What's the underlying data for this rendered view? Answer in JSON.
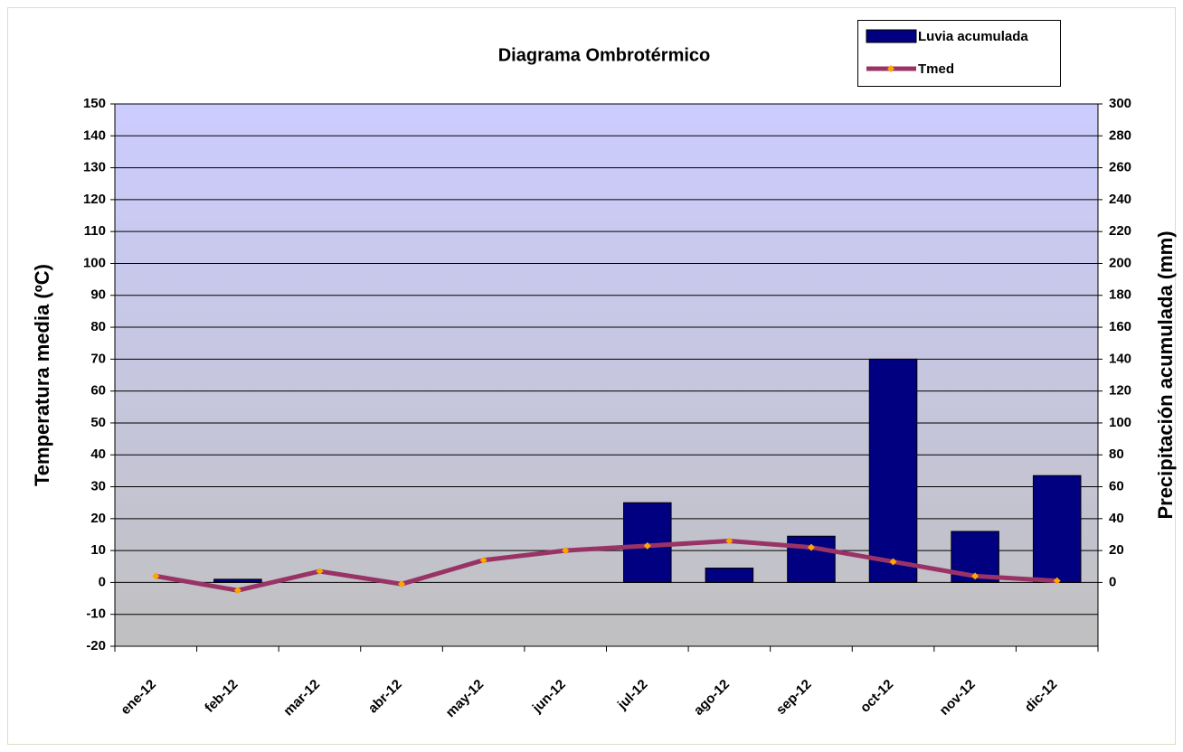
{
  "chart_data": {
    "type": "bar",
    "title": "Diagrama Ombrotérmico",
    "ylabel": "Temperatura media (ºC)",
    "y2label": "Precipitación acumulada (mm)",
    "categories": [
      "ene-12",
      "feb-12",
      "mar-12",
      "abr-12",
      "may-12",
      "jun-12",
      "jul-12",
      "ago-12",
      "sep-12",
      "oct-12",
      "nov-12",
      "dic-12"
    ],
    "series": [
      {
        "name": "Luvia acumulada",
        "type": "bar",
        "axis": "y2",
        "color": "#000080",
        "values": [
          0,
          2,
          0,
          0,
          0,
          0,
          50,
          9,
          29,
          140,
          32,
          67
        ]
      },
      {
        "name": "Tmed",
        "type": "line",
        "axis": "y",
        "color": "#993366",
        "marker_color": "#ffa500",
        "values": [
          2,
          -2.5,
          3.5,
          -0.5,
          7,
          10,
          11.5,
          13,
          11,
          6.5,
          2,
          0.5
        ]
      }
    ],
    "ylim": [
      -20,
      150
    ],
    "yticks": [
      -20,
      -10,
      0,
      10,
      20,
      30,
      40,
      50,
      60,
      70,
      80,
      90,
      100,
      110,
      120,
      130,
      140,
      150
    ],
    "y2lim": [
      -40,
      300
    ],
    "y2ticks": [
      0,
      20,
      40,
      60,
      80,
      100,
      120,
      140,
      160,
      180,
      200,
      220,
      240,
      260,
      280,
      300
    ],
    "grid": true,
    "legend": "top-right"
  }
}
